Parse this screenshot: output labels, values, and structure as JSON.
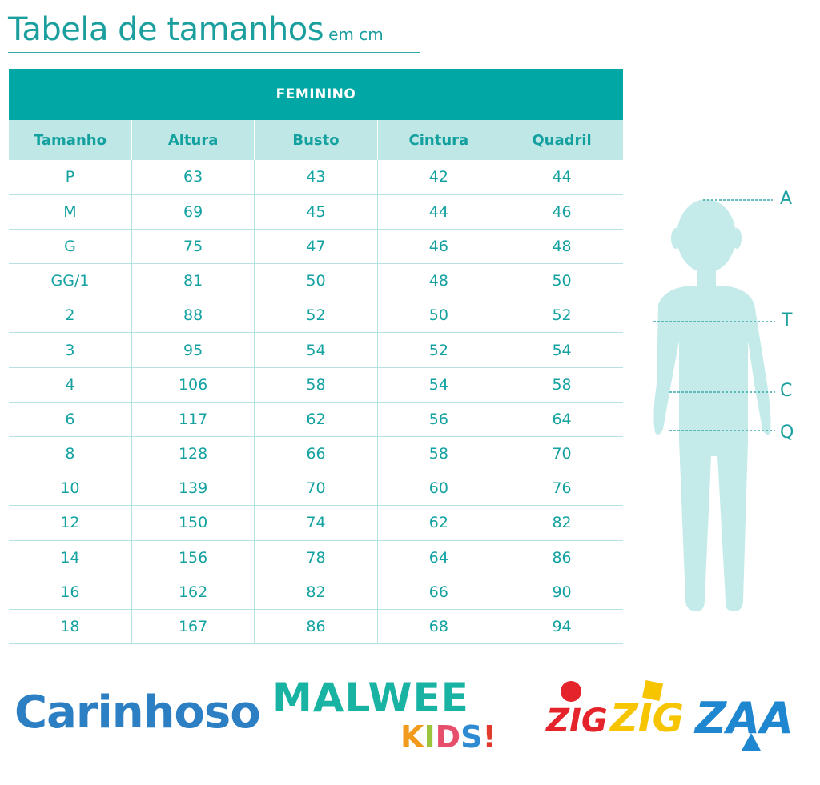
{
  "header": {
    "title": "Tabela de tamanhos",
    "unit": "em cm"
  },
  "table": {
    "section_title": "FEMININO",
    "columns": [
      "Tamanho",
      "Altura",
      "Busto",
      "Cintura",
      "Quadril"
    ],
    "rows": [
      [
        "P",
        "63",
        "43",
        "42",
        "44"
      ],
      [
        "M",
        "69",
        "45",
        "44",
        "46"
      ],
      [
        "G",
        "75",
        "47",
        "46",
        "48"
      ],
      [
        "GG/1",
        "81",
        "50",
        "48",
        "50"
      ],
      [
        "2",
        "88",
        "52",
        "50",
        "52"
      ],
      [
        "3",
        "95",
        "54",
        "52",
        "54"
      ],
      [
        "4",
        "106",
        "58",
        "54",
        "58"
      ],
      [
        "6",
        "117",
        "62",
        "56",
        "64"
      ],
      [
        "8",
        "128",
        "66",
        "58",
        "70"
      ],
      [
        "10",
        "139",
        "70",
        "60",
        "76"
      ],
      [
        "12",
        "150",
        "74",
        "62",
        "82"
      ],
      [
        "14",
        "156",
        "78",
        "64",
        "86"
      ],
      [
        "16",
        "162",
        "82",
        "66",
        "90"
      ],
      [
        "18",
        "167",
        "86",
        "68",
        "94"
      ]
    ]
  },
  "figure": {
    "labels": {
      "a": "A",
      "t": "T",
      "c": "C",
      "q": "Q"
    }
  },
  "brands": {
    "carinhoso": "Carinhoso",
    "malwee_top": "MALWEE",
    "malwee_kids": [
      "K",
      "I",
      "D",
      "S",
      "!"
    ],
    "zig1": "ZIG",
    "zig2": "ZIG",
    "zaa": "ZAA"
  },
  "colors": {
    "accent": "#00a7a4",
    "header_light": "#bfe7e6",
    "text": "#14a2a1",
    "figure": "#c4ebe9"
  }
}
